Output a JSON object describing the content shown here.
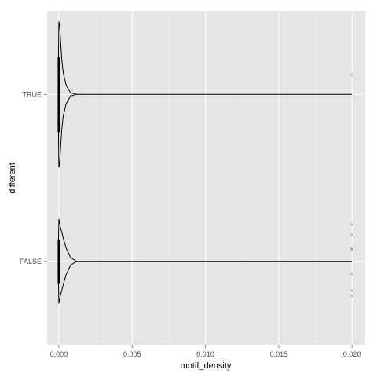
{
  "chart_data": {
    "type": "violin",
    "orientation": "horizontal",
    "xlabel": "motif_density",
    "ylabel": "different",
    "xlim": [
      -0.0008,
      0.0209
    ],
    "x_ticks": [
      0.0,
      0.005,
      0.01,
      0.015,
      0.02
    ],
    "x_tick_labels": [
      "0.000",
      "0.005",
      "0.010",
      "0.015",
      "0.020"
    ],
    "categories": [
      "TRUE",
      "FALSE"
    ],
    "grid": true,
    "legend": "none",
    "colors": {
      "panel": "#e5e5e5",
      "grid_major": "#ffffff",
      "grid_minor": "#f2f2f2",
      "violin": "#000000",
      "points": "#999999"
    },
    "series": [
      {
        "category": "TRUE",
        "min": 0.0,
        "max": 0.02,
        "box": {
          "q1": -8e-05,
          "median": 0.0,
          "q3": 8e-05
        },
        "outliers": [
          0.02
        ],
        "density_profile": [
          [
            -5e-05,
            0.0
          ],
          [
            0.0,
            0.95
          ],
          [
            5e-05,
            0.9
          ],
          [
            0.0001,
            0.75
          ],
          [
            0.0002,
            0.45
          ],
          [
            0.0003,
            0.28
          ],
          [
            0.0005,
            0.12
          ],
          [
            0.0008,
            0.02
          ],
          [
            0.0012,
            0.0
          ],
          [
            0.02,
            0.0
          ]
        ]
      },
      {
        "category": "FALSE",
        "min": 0.0,
        "max": 0.02,
        "box": {
          "q1": -8e-05,
          "median": 0.0,
          "q3": 8e-05
        },
        "outliers": [
          0.02,
          0.02,
          0.02,
          0.02,
          0.02,
          0.02,
          0.02
        ],
        "density_profile": [
          [
            -5e-05,
            0.0
          ],
          [
            0.0,
            0.55
          ],
          [
            5e-05,
            0.5
          ],
          [
            0.0001,
            0.45
          ],
          [
            0.0002,
            0.38
          ],
          [
            0.0003,
            0.3
          ],
          [
            0.0005,
            0.17
          ],
          [
            0.0008,
            0.05
          ],
          [
            0.0012,
            0.0
          ],
          [
            0.02,
            0.0
          ]
        ]
      }
    ]
  }
}
